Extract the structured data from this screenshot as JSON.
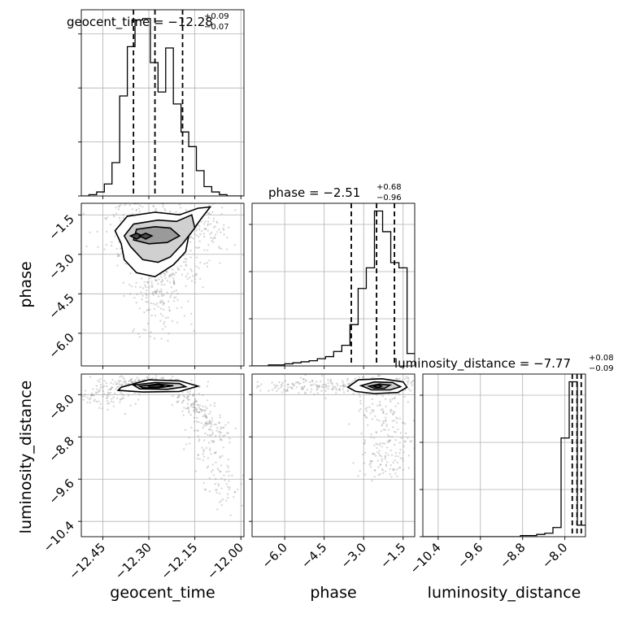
{
  "chart_data": {
    "type": "corner",
    "grid": true,
    "parameters": [
      {
        "name": "geocent_time",
        "xlim": [
          -12.52,
          -11.99
        ],
        "ticks": [
          -12.45,
          -12.3,
          -12.15,
          -12.0
        ],
        "tick_labels": [
          "−12.45",
          "−12.30",
          "−12.15",
          "−12.00"
        ],
        "title_main": "geocent_time = −12.28",
        "title_plus": "+0.09",
        "title_minus": "−0.07",
        "quantiles": [
          -12.35,
          -12.28,
          -12.19
        ],
        "hist_edges": [
          -12.52,
          -12.495,
          -12.47,
          -12.445,
          -12.42,
          -12.395,
          -12.37,
          -12.345,
          -12.32,
          -12.295,
          -12.27,
          -12.245,
          -12.22,
          -12.195,
          -12.17,
          -12.145,
          -12.12,
          -12.095,
          -12.07,
          -12.045,
          -12.02,
          -11.995
        ],
        "hist_counts": [
          0,
          1,
          3,
          9,
          25,
          75,
          112,
          132,
          133,
          100,
          78,
          111,
          69,
          48,
          37,
          19,
          7,
          3,
          1,
          0,
          0
        ]
      },
      {
        "name": "phase",
        "xlim": [
          -7.24,
          -1.06
        ],
        "ticks": [
          -6.0,
          -4.5,
          -3.0,
          -1.5
        ],
        "tick_labels": [
          "−6.0",
          "−4.5",
          "−3.0",
          "−1.5"
        ],
        "title_main": "phase = −2.51",
        "title_plus": "+0.68",
        "title_minus": "−0.96",
        "quantiles": [
          -3.47,
          -2.51,
          -1.83
        ],
        "hist_edges": [
          -7.24,
          -6.93,
          -6.62,
          -6.31,
          -6.0,
          -5.69,
          -5.38,
          -5.07,
          -4.76,
          -4.45,
          -4.14,
          -3.83,
          -3.52,
          -3.21,
          -2.9,
          -2.59,
          -2.28,
          -1.97,
          -1.66,
          -1.35,
          -1.06
        ],
        "hist_counts": [
          0,
          0,
          1,
          1,
          2,
          3,
          4,
          5,
          7,
          9,
          14,
          20,
          40,
          75,
          95,
          150,
          130,
          100,
          95,
          12
        ]
      },
      {
        "name": "luminosity_distance",
        "xlim": [
          -10.69,
          -7.61
        ],
        "ticks": [
          -10.4,
          -9.6,
          -8.8,
          -8.0
        ],
        "tick_labels": [
          "−10.4",
          "−9.6",
          "−8.8",
          "−8.0"
        ],
        "title_main": "luminosity_distance = −7.77",
        "title_plus": "+0.08",
        "title_minus": "−0.09",
        "quantiles": [
          -7.86,
          -7.77,
          -7.69
        ],
        "hist_edges": [
          -10.69,
          -10.536,
          -10.382,
          -10.228,
          -10.074,
          -9.92,
          -9.766,
          -9.612,
          -9.458,
          -9.304,
          -9.15,
          -8.996,
          -8.842,
          -8.688,
          -8.534,
          -8.38,
          -8.226,
          -8.072,
          -7.918,
          -7.764,
          -7.61
        ],
        "hist_counts": [
          0,
          0,
          0,
          0,
          0,
          0,
          0,
          0,
          0,
          0,
          0,
          0,
          1,
          1,
          2,
          3,
          8,
          86,
          135,
          10
        ]
      }
    ],
    "axis_labels": [
      "geocent_time",
      "phase",
      "luminosity_distance"
    ],
    "scatter_color": "#7f7f7f",
    "contour_color": "#000000",
    "contour_fills": [
      "#ffffff",
      "#d0d0d0",
      "#9a9a9a",
      "#4a4a4a"
    ]
  }
}
